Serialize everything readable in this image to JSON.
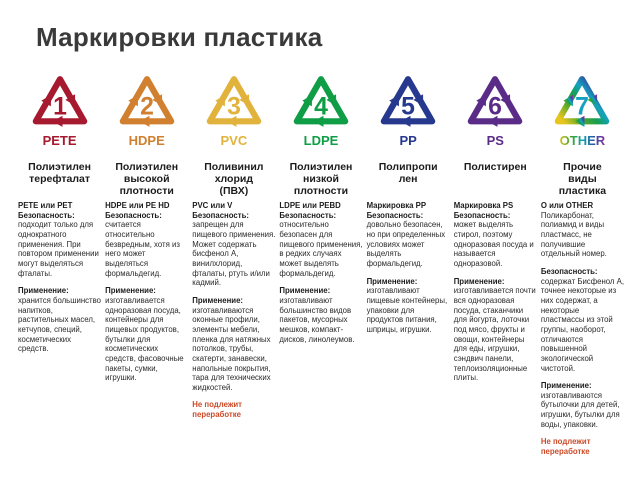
{
  "title": "Маркировки пластика",
  "warning_color": "#cc4a28",
  "columns": [
    {
      "number": "1",
      "code": "PETE",
      "color": "#a6192e",
      "number_color": "#a6192e",
      "gradient": false,
      "name": "Полиэтилен\nтерефталат",
      "blocks": [
        {
          "head": "PETE или PET",
          "label": "Безопасность:",
          "text": "подходит только для однократного применения. При повтором применении могут выделяться фталаты."
        },
        {
          "head": null,
          "label": "Применение:",
          "text": "хранится большинство напитков, растительных масел, кетчупов, специй, косметических средств."
        }
      ],
      "footer": null
    },
    {
      "number": "2",
      "code": "HDPE",
      "color": "#d0802f",
      "number_color": "#d0802f",
      "gradient": false,
      "name": "Полиэтилен\nвысокой\nплотности",
      "blocks": [
        {
          "head": "HDPE или PE HD",
          "label": "Безопасность:",
          "text": "считается относительно безвредным, хотя из него может выделяться формальдегид."
        },
        {
          "head": null,
          "label": "Применение:",
          "text": "изготавливается одноразовая посуда, контейнеры для пищевых продуктов, бутылки для косметических средств, фасовочные пакеты, сумки, игрушки."
        }
      ],
      "footer": null
    },
    {
      "number": "3",
      "code": "PVC",
      "color": "#e2b33c",
      "number_color": "#e2b33c",
      "gradient": false,
      "name": "Поливинил\nхлорид\n(ПВХ)",
      "blocks": [
        {
          "head": "PVC или V",
          "label": "Безопасность:",
          "text": "запрещен для пищевого применения. Может содержать бисфенол А, винилхлорид, фталаты, ртуть и/или кадмий."
        },
        {
          "head": null,
          "label": "Применение:",
          "text": "изготавливаются оконные профили, элементы мебели, пленка для натяжных потолков, трубы, скатерти, занавески, напольные покрытия, тара для технических жидкостей."
        }
      ],
      "footer": "Не подлежит переработке"
    },
    {
      "number": "4",
      "code": "LDPE",
      "color": "#0f9d45",
      "number_color": "#0f9d45",
      "gradient": false,
      "name": "Полиэтилен\nнизкой\nплотности",
      "blocks": [
        {
          "head": "LDPE или PEBD",
          "label": "Безопасность:",
          "text": "относительно безопасен для пищевого применения, в редких случаях может выделять формальдегид."
        },
        {
          "head": null,
          "label": "Применение:",
          "text": "изготавливают большинство видов пакетов, мусорных мешков, компакт-дисков, линолеумов."
        }
      ],
      "footer": null
    },
    {
      "number": "5",
      "code": "PP",
      "color": "#27388f",
      "number_color": "#27388f",
      "gradient": false,
      "name": "Полипропи\nлен",
      "blocks": [
        {
          "head": "Маркировка PP",
          "label": "Безопасность:",
          "text": "довольно безопасен, но при определенных условиях может выделять формальдегид."
        },
        {
          "head": null,
          "label": "Применение:",
          "text": "изготавливают пищевые контейнеры, упаковки для продуктов питания, шприцы, игрушки."
        }
      ],
      "footer": null
    },
    {
      "number": "6",
      "code": "PS",
      "color": "#5b2c87",
      "number_color": "#5b2c87",
      "gradient": false,
      "name": "Полистирен",
      "blocks": [
        {
          "head": "Маркировка PS",
          "label": "Безопасность:",
          "text": "может выделять стирол, поэтому одноразовая посуда и называется одноразовой."
        },
        {
          "head": null,
          "label": "Применение:",
          "text": "изготавливается почти вся одноразовая посуда, стаканчики для йогурта, лоточки под мясо, фрукты и овощи, контейнеры для еды, игрушки, сэндвич панели, теплоизоляционные плиты."
        }
      ],
      "footer": null
    },
    {
      "number": "7",
      "code": "OTHER",
      "color": "#14a0c4",
      "number_color": "#14a0c4",
      "gradient": true,
      "name": "Прочие\nвиды\nпластика",
      "blocks": [
        {
          "head": "О или OTHER",
          "label": null,
          "text": "Поликарбонат, полиамид и виды пластмасс, не получившие отдельный номер."
        },
        {
          "head": null,
          "label": "Безопасность:",
          "text": "содержат Бисфенол А, точнее некоторые из них содержат, а некоторые пластмассы из этой группы, наоборот, отличаются повышенной экологической чистотой."
        },
        {
          "head": null,
          "label": "Применение:",
          "text": "изготавливаются бутылочки для детей, игрушки, бутылки для воды, упаковки."
        }
      ],
      "footer": "Не подлежит переработке"
    }
  ]
}
